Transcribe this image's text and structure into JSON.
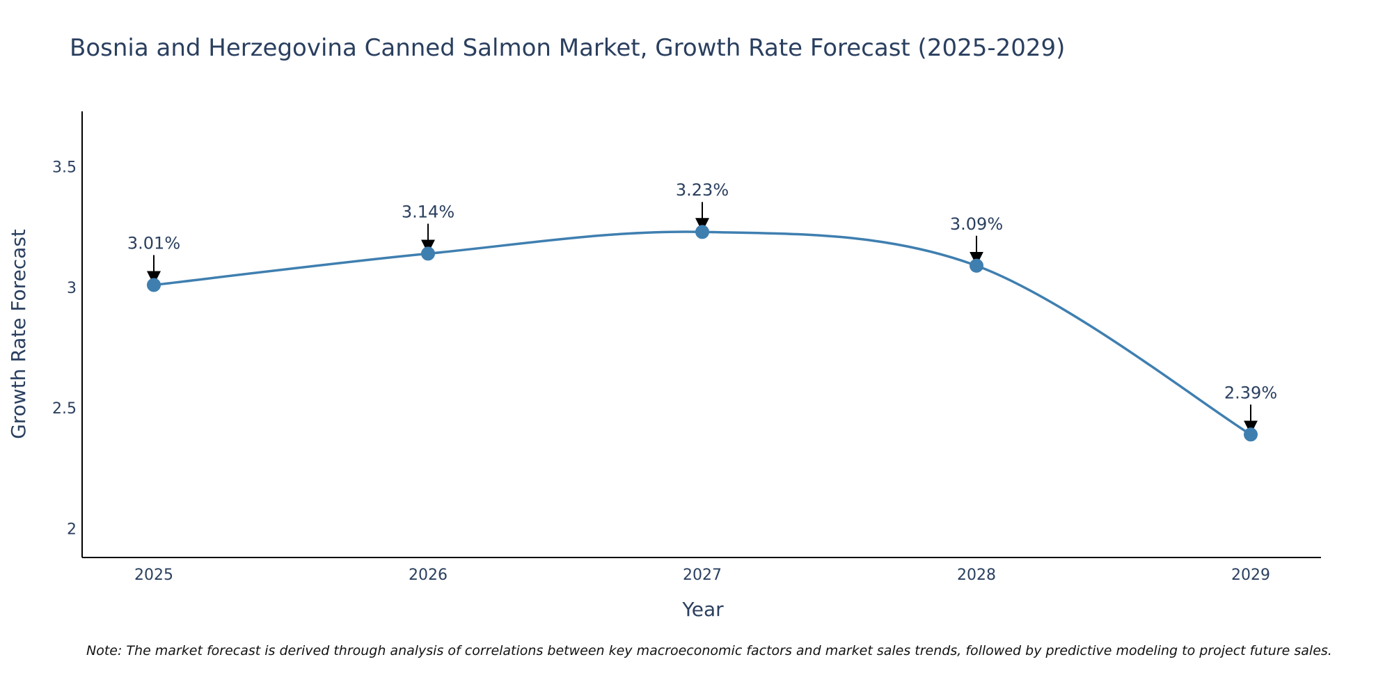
{
  "chart_data": {
    "type": "line",
    "title": "Bosnia and Herzegovina Canned Salmon Market, Growth Rate Forecast (2025-2029)",
    "xlabel": "Year",
    "ylabel": "Growth Rate Forecast",
    "categories": [
      "2025",
      "2026",
      "2027",
      "2028",
      "2029"
    ],
    "series": [
      {
        "name": "Growth Rate Forecast",
        "values": [
          3.01,
          3.14,
          3.23,
          3.09,
          2.39
        ],
        "labels": [
          "3.01%",
          "3.14%",
          "3.23%",
          "3.09%",
          "2.39%"
        ],
        "color": "#3f7fb0"
      }
    ],
    "ylim": [
      1.88,
      3.73
    ],
    "yticks": [
      2,
      2.5,
      3,
      3.5
    ],
    "ytick_labels": [
      "2",
      "2.5",
      "3",
      "3.5"
    ],
    "grid": false,
    "line_shape": "spline",
    "footnote": "Note: The market forecast is derived through analysis of correlations between key macroeconomic factors and market sales trends, followed by predictive modeling to project future sales."
  },
  "colors": {
    "text": "#2a3f5f",
    "axis": "#000000",
    "line": "#3f7fb0",
    "marker": "#3f7fb0",
    "arrow": "#000000"
  }
}
